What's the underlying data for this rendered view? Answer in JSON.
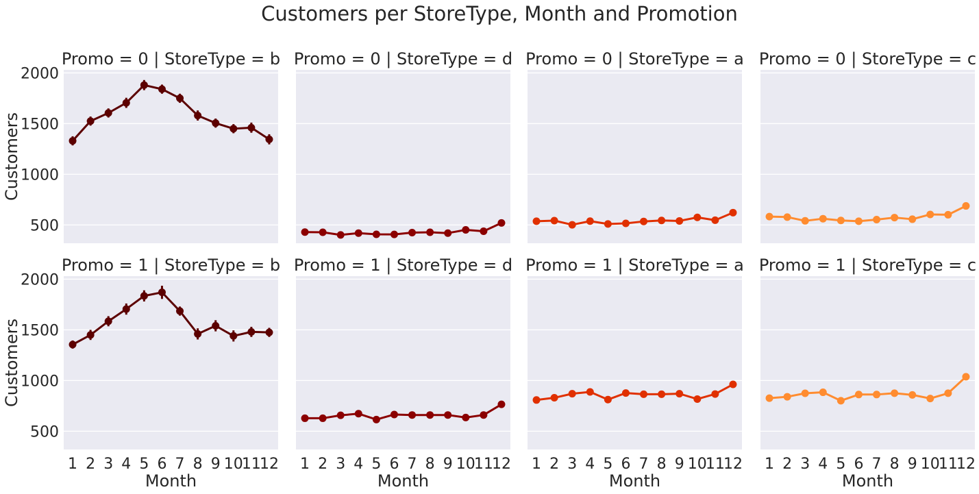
{
  "chart_data": {
    "type": "line",
    "title": "Customers per StoreType, Month and Promotion",
    "xlabel": "Month",
    "ylabel": "Customers",
    "x": [
      1,
      2,
      3,
      4,
      5,
      6,
      7,
      8,
      9,
      10,
      11,
      12
    ],
    "ylim": [
      320,
      2030
    ],
    "yticks": [
      500,
      1000,
      1500,
      2000
    ],
    "grid": true,
    "rows": [
      {
        "panels": [
          {
            "title": "Promo = 0 | StoreType = b",
            "color": "#5c0000",
            "values": [
              1330,
              1525,
              1605,
              1705,
              1880,
              1840,
              1750,
              1580,
              1505,
              1450,
              1460,
              1345
            ],
            "errors": [
              45,
              45,
              45,
              50,
              50,
              45,
              45,
              50,
              45,
              45,
              50,
              50
            ]
          },
          {
            "title": "Promo = 0 | StoreType = d",
            "color": "#8b0000",
            "values": [
              430,
              428,
              402,
              420,
              408,
              407,
              425,
              428,
              420,
              452,
              438,
              520
            ],
            "errors": [
              0,
              0,
              0,
              0,
              0,
              0,
              0,
              0,
              0,
              0,
              0,
              0
            ]
          },
          {
            "title": "Promo = 0 | StoreType = a",
            "color": "#e03000",
            "values": [
              537,
              543,
              502,
              538,
              510,
              516,
              535,
              545,
              540,
              575,
              547,
              622
            ],
            "errors": [
              0,
              0,
              0,
              0,
              0,
              0,
              0,
              0,
              0,
              0,
              0,
              0
            ]
          },
          {
            "title": "Promo = 0 | StoreType = c",
            "color": "#ff8c30",
            "values": [
              583,
              578,
              541,
              562,
              545,
              537,
              553,
              573,
              557,
              604,
              601,
              688
            ],
            "errors": [
              0,
              0,
              0,
              0,
              0,
              0,
              0,
              0,
              0,
              0,
              0,
              0
            ]
          }
        ]
      },
      {
        "panels": [
          {
            "title": "Promo = 1 | StoreType = b",
            "color": "#5c0000",
            "values": [
              1355,
              1450,
              1585,
              1705,
              1835,
              1870,
              1685,
              1460,
              1540,
              1440,
              1480,
              1475
            ],
            "errors": [
              40,
              50,
              50,
              55,
              55,
              65,
              45,
              55,
              55,
              55,
              50,
              45
            ]
          },
          {
            "title": "Promo = 1 | StoreType = d",
            "color": "#8b0000",
            "values": [
              628,
              628,
              657,
              673,
              615,
              665,
              660,
              660,
              660,
              635,
              660,
              765
            ],
            "errors": [
              0,
              0,
              0,
              0,
              0,
              0,
              0,
              0,
              0,
              0,
              0,
              0
            ]
          },
          {
            "title": "Promo = 1 | StoreType = a",
            "color": "#e03000",
            "values": [
              808,
              830,
              870,
              888,
              812,
              877,
              865,
              865,
              870,
              817,
              867,
              962
            ],
            "errors": [
              0,
              0,
              0,
              0,
              0,
              0,
              0,
              0,
              0,
              0,
              0,
              0
            ]
          },
          {
            "title": "Promo = 1 | StoreType = c",
            "color": "#ff8c30",
            "values": [
              826,
              840,
              874,
              884,
              801,
              862,
              862,
              875,
              858,
              823,
              875,
              1037
            ],
            "errors": [
              0,
              0,
              0,
              0,
              0,
              0,
              0,
              0,
              0,
              0,
              0,
              0
            ]
          }
        ]
      }
    ]
  }
}
